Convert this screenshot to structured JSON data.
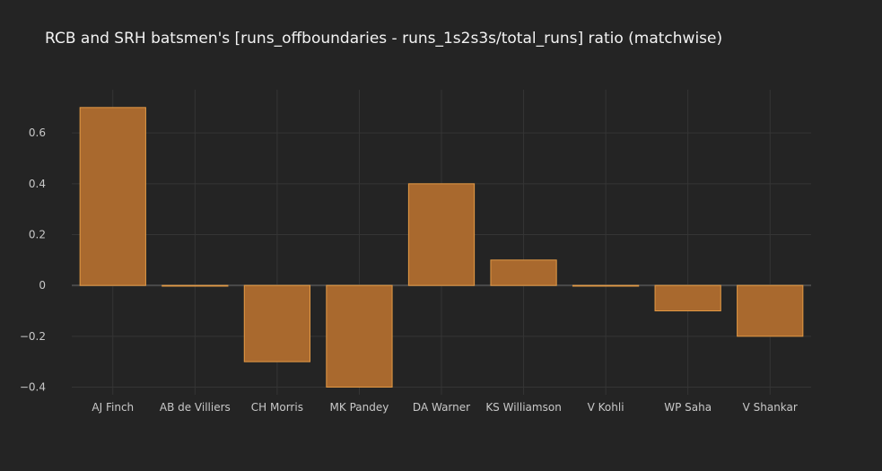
{
  "chart_data": {
    "type": "bar",
    "title": "RCB and SRH batsmen's [runs_offboundaries - runs_1s2s3s/total_runs] ratio (matchwise)",
    "xlabel": "",
    "ylabel": "",
    "categories": [
      "AJ Finch",
      "AB de Villiers",
      "CH Morris",
      "MK Pandey",
      "DA Warner",
      "KS Williamson",
      "V Kohli",
      "WP Saha",
      "V Shankar"
    ],
    "values": [
      0.7,
      0.0,
      -0.3,
      -0.4,
      0.4,
      0.1,
      0.0,
      -0.1,
      -0.2
    ],
    "ylim": [
      -0.43,
      0.77
    ],
    "yticks": [
      0.6,
      0.4,
      0.2,
      0,
      -0.2,
      -0.4
    ],
    "ytick_labels": [
      "0.6",
      "0.4",
      "0.2",
      "0",
      "−0.2",
      "−0.4"
    ],
    "grid": true,
    "legend": "none",
    "colors": {
      "background": "#242424",
      "bar_fill": "#a9692e",
      "bar_stroke": "#e39a45",
      "grid": "#353535",
      "zero_line": "#4a4a4a",
      "text": "#c8c8c8",
      "title": "#f2f2f2"
    }
  }
}
